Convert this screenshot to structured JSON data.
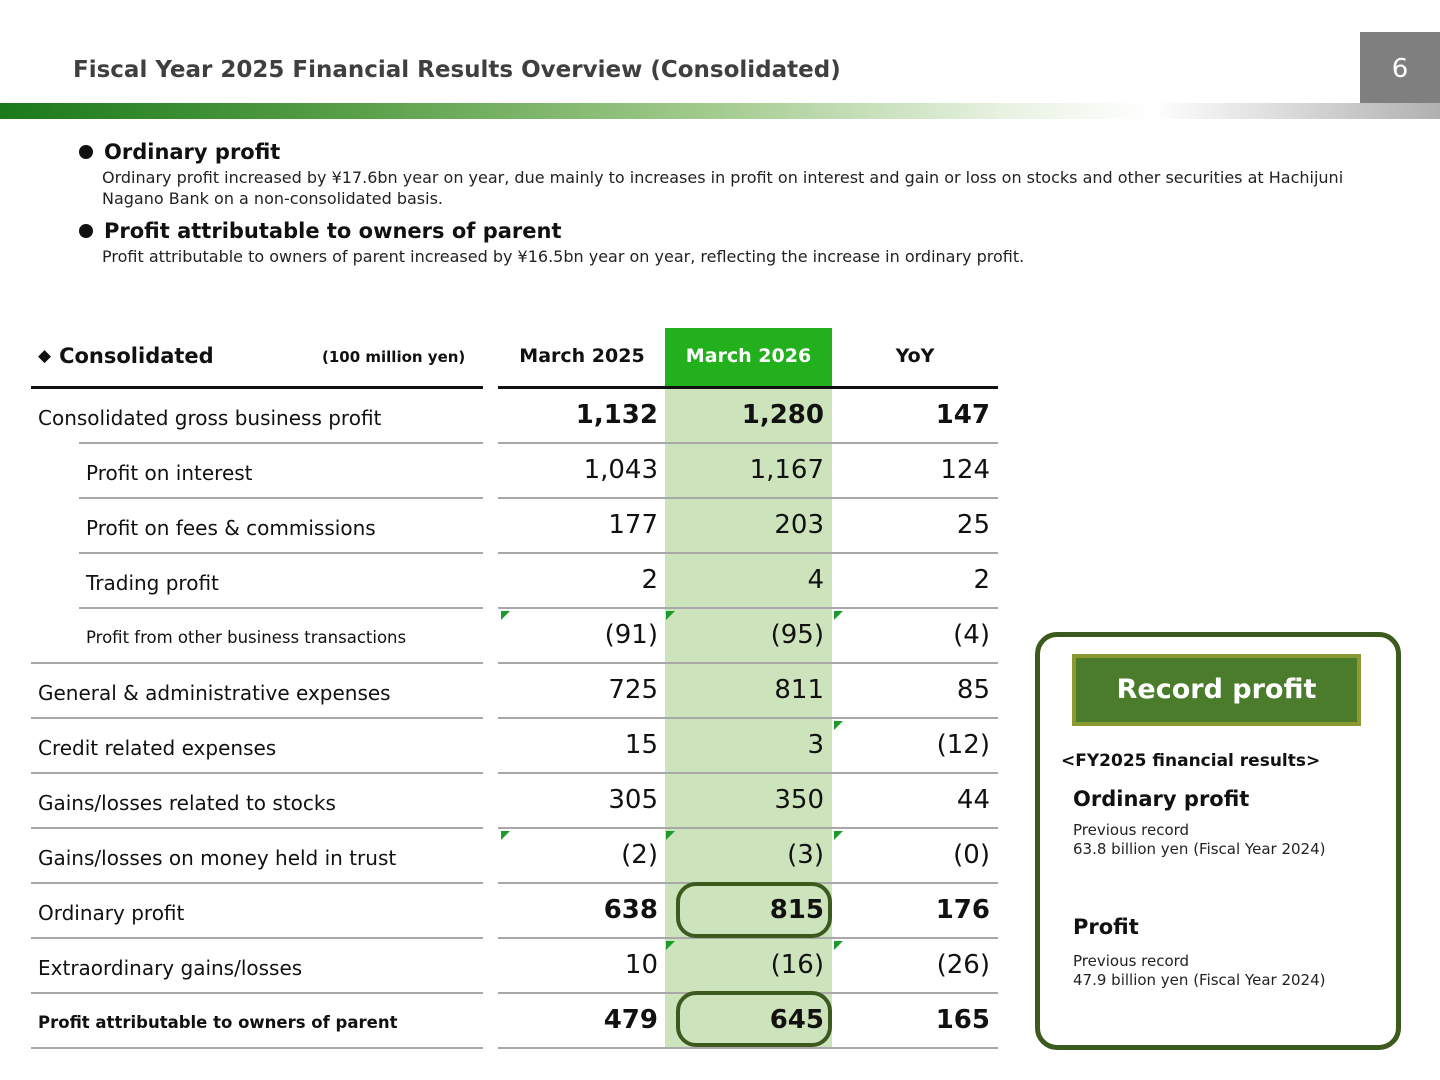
{
  "header": {
    "title": "Fiscal Year 2025 Financial Results Overview (Consolidated)",
    "page_number": "6"
  },
  "bullets": [
    {
      "heading": "Ordinary profit",
      "body": "Ordinary profit increased by ¥17.6bn year on year, due mainly to increases in profit on interest and gain or loss on stocks and other securities at Hachijuni Nagano Bank on a non-consolidated basis."
    },
    {
      "heading": "Profit attributable to owners of parent",
      "body": "Profit attributable to owners of parent increased by ¥16.5bn year on year, reflecting the increase in ordinary profit."
    }
  ],
  "table": {
    "marker": "◆",
    "title": "Consolidated",
    "unit": "(100 million yen)",
    "columns": [
      "March 2025",
      "March 2026",
      "YoY"
    ],
    "highlight_color": "#22b01c",
    "rows": [
      {
        "label": "Consolidated gross business profit",
        "values": [
          "1,132",
          "1,280",
          "147"
        ]
      },
      {
        "label": "Profit on interest",
        "values": [
          "1,043",
          "1,167",
          "124"
        ]
      },
      {
        "label": "Profit on fees & commissions",
        "values": [
          "177",
          "203",
          "25"
        ]
      },
      {
        "label": "Trading profit",
        "values": [
          "2",
          "4",
          "2"
        ]
      },
      {
        "label": "Profit from other business transactions",
        "values": [
          "(91)",
          "(95)",
          "(4)"
        ]
      },
      {
        "label": "General & administrative expenses",
        "values": [
          "725",
          "811",
          "85"
        ]
      },
      {
        "label": "Credit related expenses",
        "values": [
          "15",
          "3",
          "(12)"
        ]
      },
      {
        "label": "Gains/losses related to stocks",
        "values": [
          "305",
          "350",
          "44"
        ]
      },
      {
        "label": "Gains/losses on money held in trust",
        "values": [
          "(2)",
          "(3)",
          "(0)"
        ]
      },
      {
        "label": "Ordinary profit",
        "values": [
          "638",
          "815",
          "176"
        ]
      },
      {
        "label": "Extraordinary gains/losses",
        "values": [
          "10",
          "(16)",
          "(26)"
        ]
      },
      {
        "label": "Profit attributable to owners of parent",
        "values": [
          "479",
          "645",
          "165"
        ]
      }
    ]
  },
  "record": {
    "badge": "Record profit",
    "subtitle": "<FY2025 financial results>",
    "items": [
      {
        "title": "Ordinary profit",
        "line1": "Previous record",
        "line2": "63.8 billion yen (Fiscal Year 2024)"
      },
      {
        "title": "Profit",
        "line1": "Previous record",
        "line2": "47.9 billion yen (Fiscal Year 2024)"
      }
    ]
  }
}
